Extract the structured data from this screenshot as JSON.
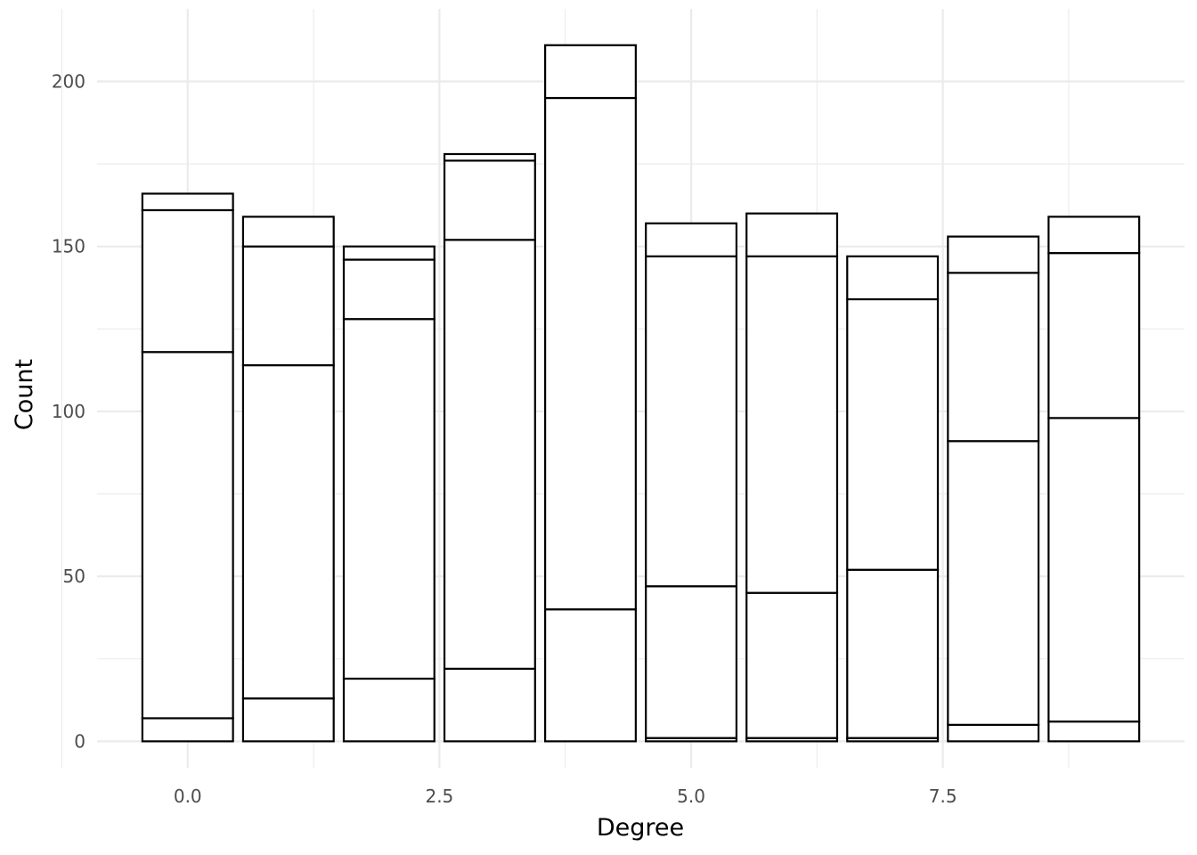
{
  "chart_data": {
    "type": "bar",
    "stacked": true,
    "xlabel": "Degree",
    "ylabel": "Count",
    "xlim": [
      -0.9,
      9.9
    ],
    "ylim": [
      -8,
      222
    ],
    "x_ticks": [
      "0.0",
      "2.5",
      "5.0",
      "7.5"
    ],
    "x_tick_values": [
      0,
      2.5,
      5,
      7.5
    ],
    "y_ticks": [
      "0",
      "50",
      "100",
      "150",
      "200"
    ],
    "y_tick_values": [
      0,
      50,
      100,
      150,
      200
    ],
    "grid": true,
    "bar_fill": "#ffffff",
    "bar_outline": "#000000",
    "grid_color": "#ebebeb",
    "x": [
      0,
      1,
      2,
      3,
      4,
      5,
      6,
      7,
      8,
      9
    ],
    "stack_boundaries": [
      [
        7,
        118,
        161,
        166
      ],
      [
        13,
        114,
        150,
        159
      ],
      [
        19,
        128,
        146,
        150
      ],
      [
        22,
        152,
        176,
        178
      ],
      [
        40,
        195,
        211
      ],
      [
        1,
        47,
        147,
        157
      ],
      [
        1,
        45,
        147,
        160
      ],
      [
        1,
        52,
        134,
        147
      ],
      [
        5,
        91,
        142,
        153
      ],
      [
        6,
        98,
        148,
        159
      ]
    ],
    "totals": [
      166,
      159,
      150,
      178,
      211,
      157,
      160,
      147,
      153,
      159
    ]
  }
}
